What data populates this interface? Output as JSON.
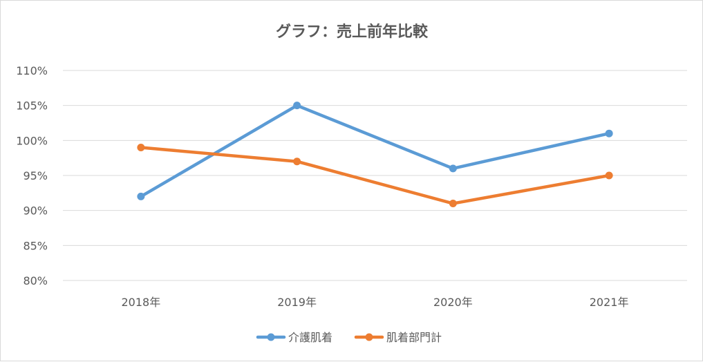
{
  "chart_data": {
    "type": "line",
    "title": "グラフ：売上前年比較",
    "categories": [
      "2018年",
      "2019年",
      "2020年",
      "2021年"
    ],
    "y_ticks": [
      "80%",
      "85%",
      "90%",
      "95%",
      "100%",
      "105%",
      "110%"
    ],
    "ylim": [
      80,
      110
    ],
    "grid": true,
    "legend_position": "bottom",
    "series": [
      {
        "name": "介護肌着",
        "color": "#5b9bd5",
        "values": [
          92,
          105,
          96,
          101
        ]
      },
      {
        "name": "肌着部門計",
        "color": "#ed7d31",
        "values": [
          99,
          97,
          91,
          95
        ]
      }
    ]
  }
}
